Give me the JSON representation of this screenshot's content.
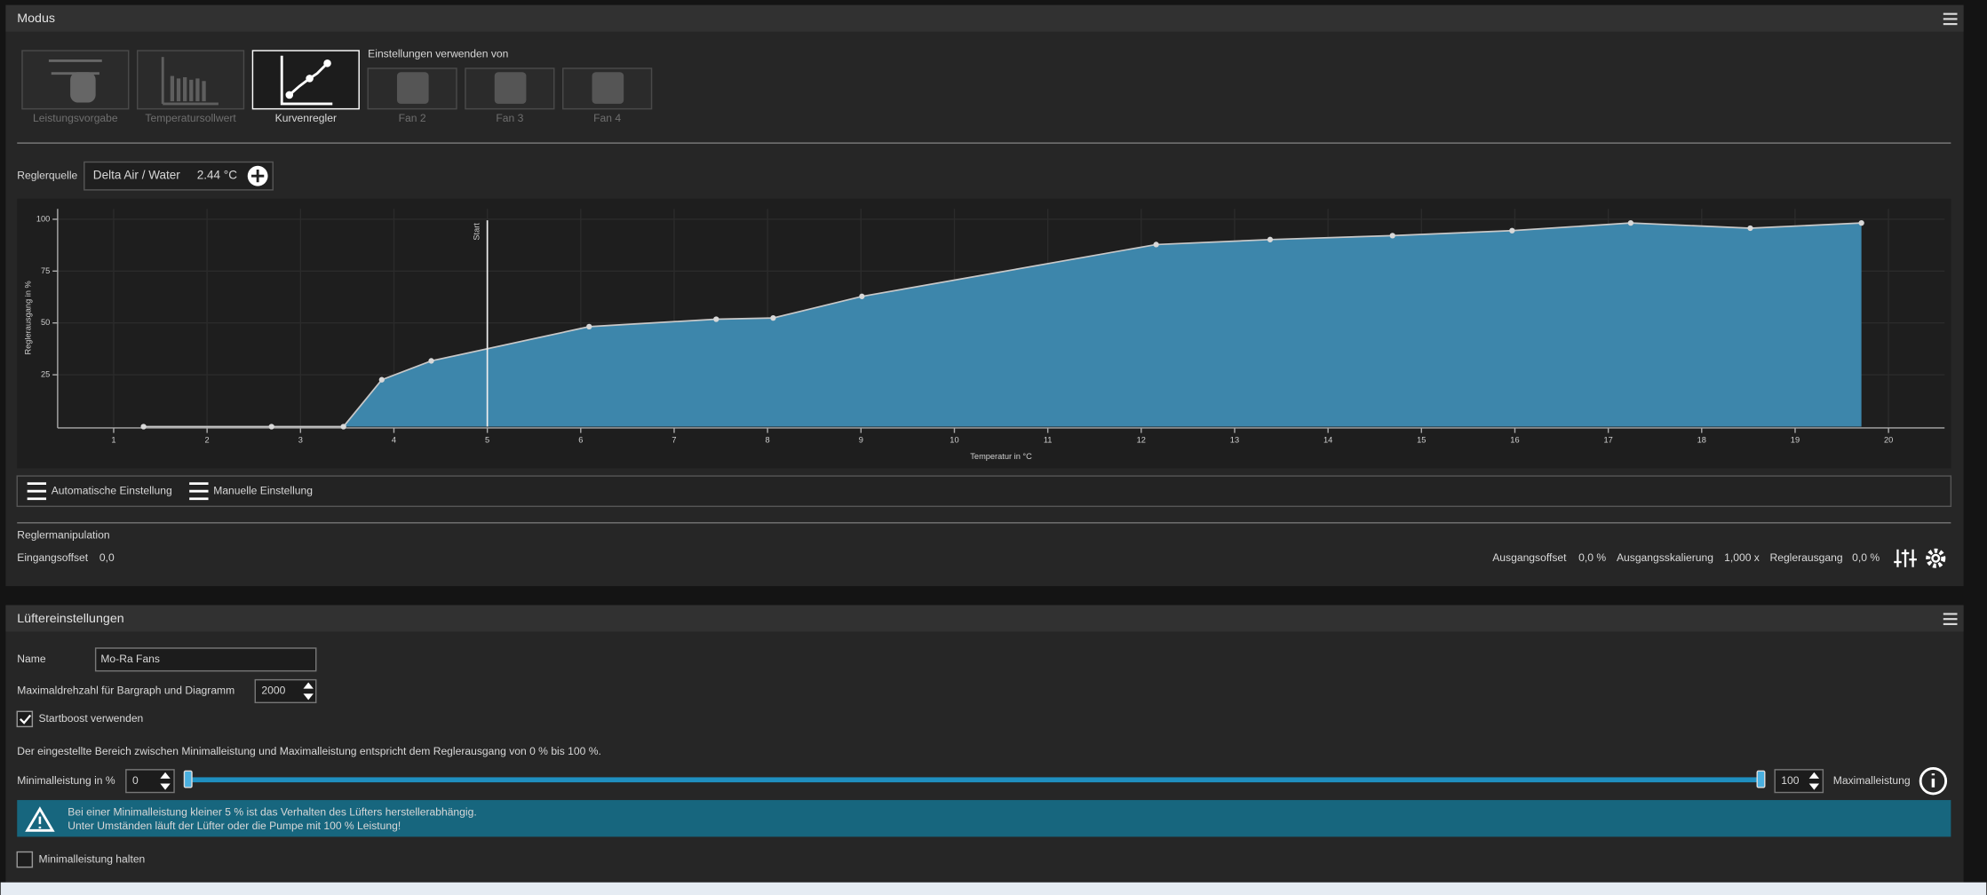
{
  "modus": {
    "title": "Modus",
    "modes": [
      "Leistungsvorgabe",
      "Temperatursollwert",
      "Kurvenregler"
    ],
    "use_settings_label": "Einstellungen verwenden von",
    "fans": [
      "Fan 2",
      "Fan 3",
      "Fan 4"
    ]
  },
  "source": {
    "label": "Reglerquelle",
    "name": "Delta Air / Water",
    "value": "2.44 °C"
  },
  "curve": {
    "x": [
      1.32,
      2.69,
      3.46,
      3.87,
      4.4,
      6.09,
      7.45,
      8.06,
      9.01,
      12.16,
      13.38,
      14.69,
      15.97,
      17.24,
      18.52,
      19.71
    ],
    "y": [
      0,
      0,
      0,
      22.6,
      31.7,
      48.2,
      51.8,
      52.4,
      62.8,
      87.8,
      90.2,
      92.1,
      94.5,
      98.2,
      95.7,
      98.2
    ],
    "xlim": [
      0.4,
      20.6
    ],
    "ylim": [
      0,
      105
    ],
    "xticks": [
      1,
      2,
      3,
      4,
      5,
      6,
      7,
      8,
      9,
      10,
      11,
      12,
      13,
      14,
      15,
      16,
      17,
      18,
      19,
      20
    ],
    "yticks": [
      25,
      50,
      75,
      100
    ],
    "x_label": "Temperatur in °C",
    "y_label": "Reglerausgang in %",
    "start_label": "Start",
    "start_x": 5,
    "color": "#3d86ab"
  },
  "buttons": [
    "Automatische Einstellung",
    "Manuelle Einstellung"
  ],
  "manipulation": {
    "title": "Reglermanipulation",
    "input_offset_label": "Eingangsoffset",
    "input_offset": "0,0",
    "output_offset_label": "Ausgangsoffset",
    "output_offset": "0,0 %",
    "scaling_label": "Ausgangsskalierung",
    "scaling": "1,000 x",
    "output_label": "Reglerausgang",
    "output": "0,0 %"
  },
  "fan_settings": {
    "title": "Lüftereinstellungen",
    "name_label": "Name",
    "name": "Mo-Ra Fans",
    "max_rpm_label": "Maximaldrehzahl für Bargraph und Diagramm",
    "max_rpm": 2000,
    "startboost_label": "Startboost verwenden",
    "range_note": "Der eingestellte Bereich zwischen Minimalleistung und Maximalleistung entspricht dem Reglerausgang von 0 % bis 100 %.",
    "min_label": "Minimalleistung in %",
    "min": 0,
    "max": 100,
    "max_label": "Maximalleistung",
    "warning": [
      "Bei einer Minimalleistung kleiner 5 % ist das Verhalten des Lüfters herstellerabhängig.",
      "Unter Umständen läuft der Lüfter oder die Pumpe mit 100 % Leistung!"
    ],
    "hold_label": "Minimalleistung halten"
  }
}
